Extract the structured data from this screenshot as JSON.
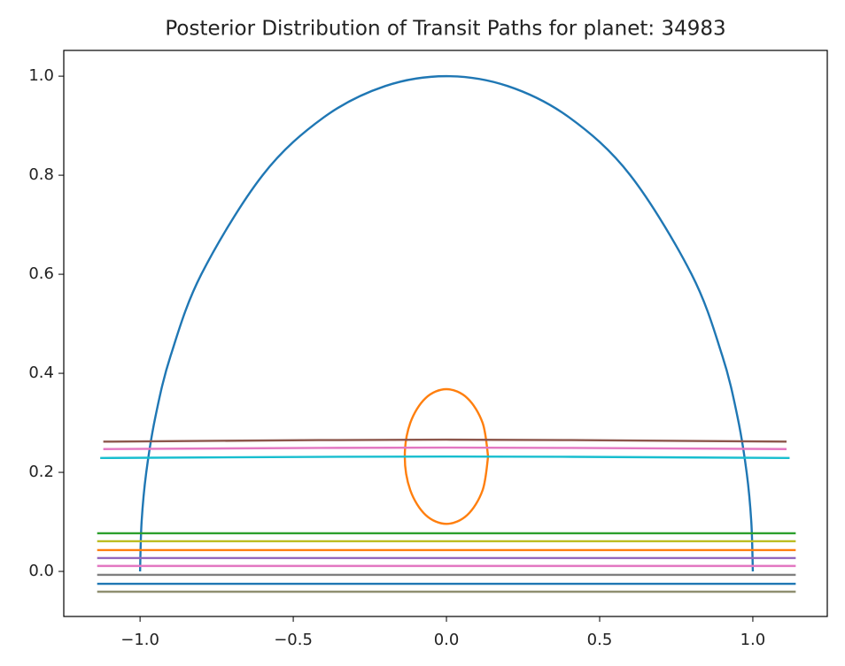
{
  "chart_data": {
    "type": "line",
    "title": "Posterior Distribution of Transit Paths for planet: 34983",
    "xlim": [
      -1.249,
      1.243
    ],
    "ylim": [
      -0.091,
      1.052
    ],
    "xticks": [
      {
        "value": -1.0,
        "label": "−1.0"
      },
      {
        "value": -0.5,
        "label": "−0.5"
      },
      {
        "value": 0.0,
        "label": "0.0"
      },
      {
        "value": 0.5,
        "label": "0.5"
      },
      {
        "value": 1.0,
        "label": "1.0"
      }
    ],
    "yticks": [
      {
        "value": 0.0,
        "label": "0.0"
      },
      {
        "value": 0.2,
        "label": "0.2"
      },
      {
        "value": 0.4,
        "label": "0.4"
      },
      {
        "value": 0.6,
        "label": "0.6"
      },
      {
        "value": 0.8,
        "label": "0.8"
      },
      {
        "value": 1.0,
        "label": "1.0"
      }
    ],
    "series": [
      {
        "color": "#1f77b4",
        "x": [
          -1,
          -0.995,
          -0.98,
          -0.95,
          -0.9,
          -0.8,
          -0.6,
          -0.4,
          -0.2,
          0,
          0.2,
          0.4,
          0.6,
          0.8,
          0.9,
          0.95,
          0.98,
          0.995,
          1
        ],
        "values": [
          0,
          0.1,
          0.199,
          0.312,
          0.436,
          0.6,
          0.8,
          0.917,
          0.98,
          1,
          0.98,
          0.917,
          0.8,
          0.6,
          0.436,
          0.312,
          0.199,
          0.1,
          0
        ]
      },
      {
        "color": "#ff7f0e",
        "x": [
          0.136,
          0.118,
          0.068,
          0,
          -0.068,
          -0.118,
          -0.136,
          -0.118,
          -0.068,
          0,
          0.068,
          0.118,
          0.136
        ],
        "values": [
          0.232,
          0.3,
          0.35,
          0.368,
          0.35,
          0.3,
          0.232,
          0.164,
          0.114,
          0.096,
          0.114,
          0.164,
          0.232
        ]
      },
      {
        "color": "#8c564b",
        "x": [
          -1.12,
          0,
          1.11
        ],
        "values": [
          0.262,
          0.266,
          0.262
        ]
      },
      {
        "color": "#e377c2",
        "x": [
          -1.12,
          0,
          1.11
        ],
        "values": [
          0.247,
          0.25,
          0.247
        ]
      },
      {
        "color": "#17becf",
        "x": [
          -1.13,
          0,
          1.12
        ],
        "values": [
          0.229,
          0.232,
          0.229
        ]
      },
      {
        "color": "#2ca02c",
        "x": [
          -1.14,
          1.14
        ],
        "values": [
          0.077,
          0.077
        ]
      },
      {
        "color": "#bcbd22",
        "x": [
          -1.14,
          1.14
        ],
        "values": [
          0.061,
          0.061
        ]
      },
      {
        "color": "#ff7f0e",
        "x": [
          -1.14,
          1.14
        ],
        "values": [
          0.043,
          0.043
        ]
      },
      {
        "color": "#9467bd",
        "x": [
          -1.14,
          1.14
        ],
        "values": [
          0.027,
          0.027
        ]
      },
      {
        "color": "#e377c2",
        "x": [
          -1.14,
          1.14
        ],
        "values": [
          0.011,
          0.011
        ]
      },
      {
        "color": "#7f7f7f",
        "x": [
          -1.14,
          1.14
        ],
        "values": [
          -0.007,
          -0.007
        ]
      },
      {
        "color": "#1f77b4",
        "x": [
          -1.14,
          1.14
        ],
        "values": [
          -0.025,
          -0.025
        ]
      },
      {
        "color": "#8f8f70",
        "x": [
          -1.14,
          1.14
        ],
        "values": [
          -0.041,
          -0.041
        ]
      }
    ]
  }
}
